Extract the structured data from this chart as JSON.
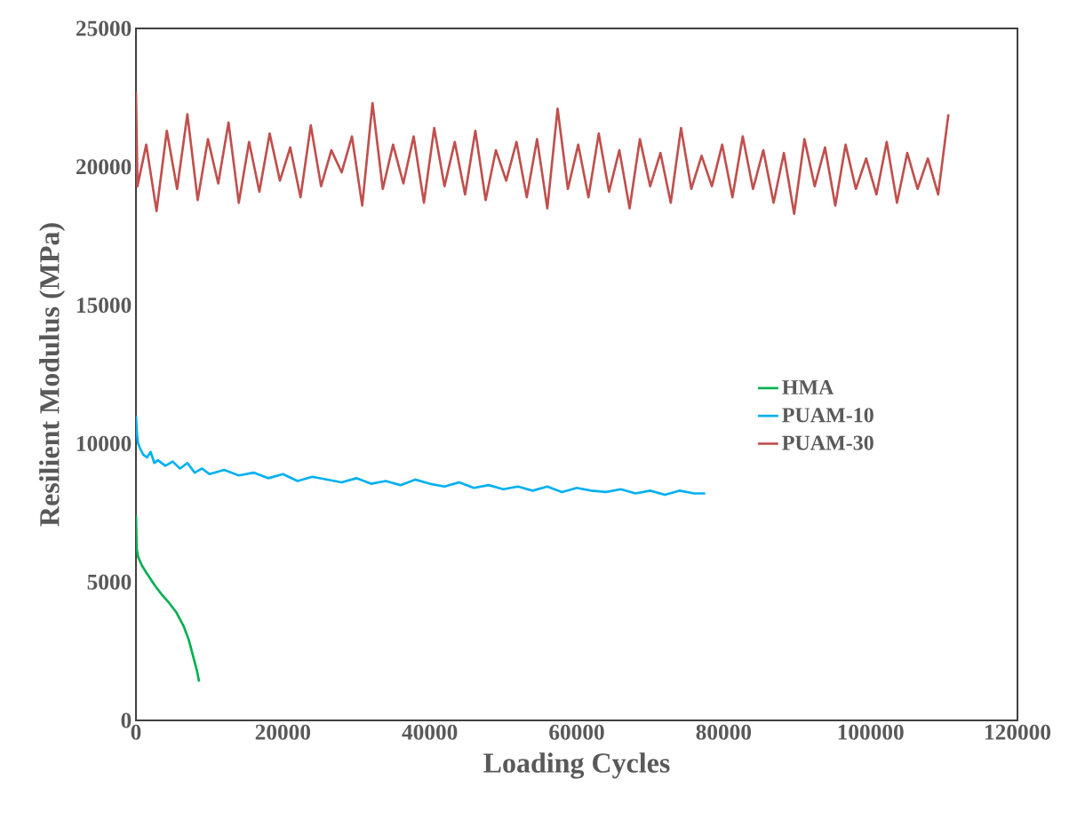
{
  "chart_data": {
    "type": "line",
    "xlabel": "Loading Cycles",
    "ylabel": "Resilient Modulus (MPa)",
    "xlim": [
      0,
      120000
    ],
    "ylim": [
      0,
      25000
    ],
    "xticks": [
      0,
      20000,
      40000,
      60000,
      80000,
      100000,
      120000
    ],
    "yticks": [
      0,
      5000,
      10000,
      15000,
      20000,
      25000
    ],
    "legend": "right",
    "grid": false,
    "marker": "none",
    "line_style": "solid",
    "series": [
      {
        "name": "HMA",
        "color": "#00b050",
        "x": [
          0,
          100,
          300,
          800,
          1500,
          2500,
          3500,
          4500,
          5500,
          6500,
          7200,
          7800,
          8300,
          8600
        ],
        "values": [
          7400,
          6200,
          5900,
          5600,
          5300,
          4900,
          4550,
          4250,
          3900,
          3400,
          2900,
          2300,
          1800,
          1400
        ]
      },
      {
        "name": "PUAM-10",
        "color": "#00b0f0",
        "x": [
          0,
          150,
          300,
          600,
          1000,
          1500,
          2000,
          2500,
          3000,
          4000,
          5000,
          6000,
          7000,
          8000,
          9000,
          10000,
          12000,
          14000,
          16000,
          18000,
          20000,
          22000,
          24000,
          26000,
          28000,
          30000,
          32000,
          34000,
          36000,
          38000,
          40000,
          42000,
          44000,
          46000,
          48000,
          50000,
          52000,
          54000,
          56000,
          58000,
          60000,
          62000,
          64000,
          66000,
          68000,
          70000,
          72000,
          74000,
          76000,
          77500
        ],
        "values": [
          11000,
          10300,
          10000,
          9800,
          9600,
          9500,
          9700,
          9300,
          9400,
          9200,
          9350,
          9100,
          9300,
          8950,
          9100,
          8900,
          9050,
          8850,
          8950,
          8750,
          8900,
          8650,
          8800,
          8700,
          8600,
          8750,
          8550,
          8650,
          8500,
          8700,
          8550,
          8450,
          8600,
          8400,
          8500,
          8350,
          8450,
          8300,
          8450,
          8250,
          8400,
          8300,
          8250,
          8350,
          8200,
          8300,
          8150,
          8300,
          8200,
          8200
        ]
      },
      {
        "name": "PUAM-30",
        "color": "#c0504d",
        "x": [
          0,
          200,
          1400,
          2800,
          4200,
          5600,
          7000,
          8400,
          9800,
          11200,
          12600,
          14000,
          15400,
          16800,
          18200,
          19600,
          21000,
          22400,
          23800,
          25200,
          26600,
          28000,
          29400,
          30800,
          32200,
          33600,
          35000,
          36400,
          37800,
          39200,
          40600,
          42000,
          43400,
          44800,
          46200,
          47600,
          49000,
          50400,
          51800,
          53200,
          54600,
          56000,
          57400,
          58800,
          60200,
          61600,
          63000,
          64400,
          65800,
          67200,
          68600,
          70000,
          71400,
          72800,
          74200,
          75600,
          77000,
          78400,
          79800,
          81200,
          82600,
          84000,
          85400,
          86800,
          88200,
          89600,
          91000,
          92400,
          93800,
          95200,
          96600,
          98000,
          99400,
          100800,
          102200,
          103600,
          105000,
          106400,
          107800,
          109200,
          110600
        ],
        "values": [
          22700,
          19300,
          20800,
          18400,
          21300,
          19200,
          21900,
          18800,
          21000,
          19400,
          21600,
          18700,
          20900,
          19100,
          21200,
          19500,
          20700,
          18900,
          21500,
          19300,
          20600,
          19800,
          21100,
          18600,
          22300,
          19200,
          20800,
          19400,
          21100,
          18700,
          21400,
          19300,
          20900,
          19000,
          21300,
          18800,
          20600,
          19500,
          20900,
          18900,
          21000,
          18500,
          22100,
          19200,
          20800,
          18900,
          21200,
          19100,
          20600,
          18500,
          21000,
          19300,
          20500,
          18700,
          21400,
          19200,
          20400,
          19300,
          20800,
          18900,
          21100,
          19200,
          20600,
          18700,
          20500,
          18300,
          21000,
          19300,
          20700,
          18600,
          20800,
          19200,
          20300,
          19000,
          20900,
          18700,
          20500,
          19200,
          20300,
          19000,
          21900
        ]
      }
    ]
  }
}
